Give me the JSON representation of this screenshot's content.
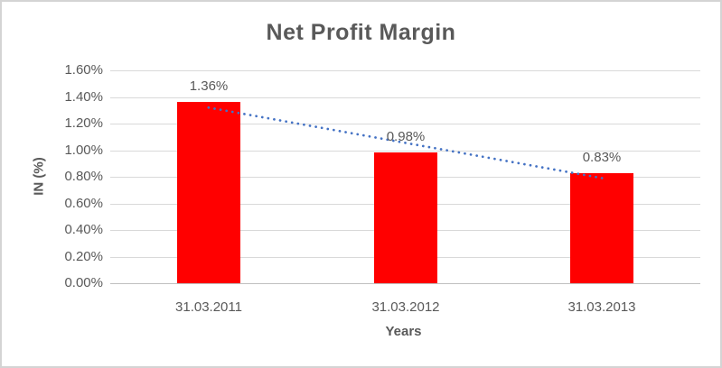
{
  "chart_data": {
    "type": "bar",
    "title": "Net Profit Margin",
    "xlabel": "Years",
    "ylabel": "IN (%)",
    "categories": [
      "31.03.2011",
      "31.03.2012",
      "31.03.2013"
    ],
    "series": [
      {
        "name": "Net Profit Margin",
        "values": [
          1.36,
          0.98,
          0.83
        ]
      }
    ],
    "data_labels": [
      "1.36%",
      "0.98%",
      "0.83%"
    ],
    "ylim": [
      0,
      1.6
    ],
    "ytick_step": 0.2,
    "ytick_labels": [
      "0.00%",
      "0.20%",
      "0.40%",
      "0.60%",
      "0.80%",
      "1.00%",
      "1.20%",
      "1.40%",
      "1.60%"
    ],
    "grid": true,
    "legend": "none",
    "trendline": {
      "type": "linear",
      "style": "dotted",
      "color": "#4472c4",
      "start_value": 1.32,
      "end_value": 0.79
    },
    "colors": {
      "bar": "#ff0000",
      "text": "#595959",
      "gridline": "#d9d9d9",
      "axis_line": "#bfbfbf",
      "border": "#d4d4d4",
      "background": "#ffffff"
    }
  }
}
